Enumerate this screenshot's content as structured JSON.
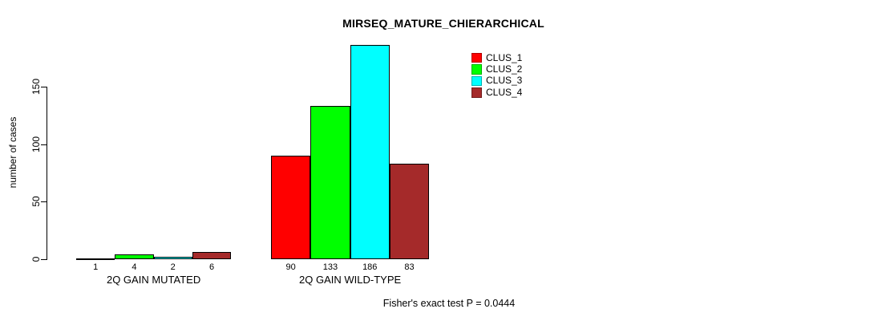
{
  "title": "MIRSEQ_MATURE_CHIERARCHICAL",
  "footnote": "Fisher's exact test P = 0.0444",
  "chart_data": {
    "type": "bar",
    "categories": [
      "2Q GAIN MUTATED",
      "2Q GAIN WILD-TYPE"
    ],
    "series": [
      {
        "name": "CLUS_1",
        "color": "#FF0000",
        "values": [
          1,
          90
        ]
      },
      {
        "name": "CLUS_2",
        "color": "#00FF00",
        "values": [
          4,
          133
        ]
      },
      {
        "name": "CLUS_3",
        "color": "#00FFFF",
        "values": [
          2,
          186
        ]
      },
      {
        "name": "CLUS_4",
        "color": "#A52A2A",
        "values": [
          6,
          83
        ]
      }
    ],
    "ylabel": "number of cases",
    "xlabel": "",
    "yticks": [
      0,
      50,
      100,
      150
    ],
    "ylim": [
      0,
      186
    ],
    "grid": false,
    "bar_value_labels": true,
    "legend_position": "top-right",
    "bar_border_color": "#000000"
  }
}
